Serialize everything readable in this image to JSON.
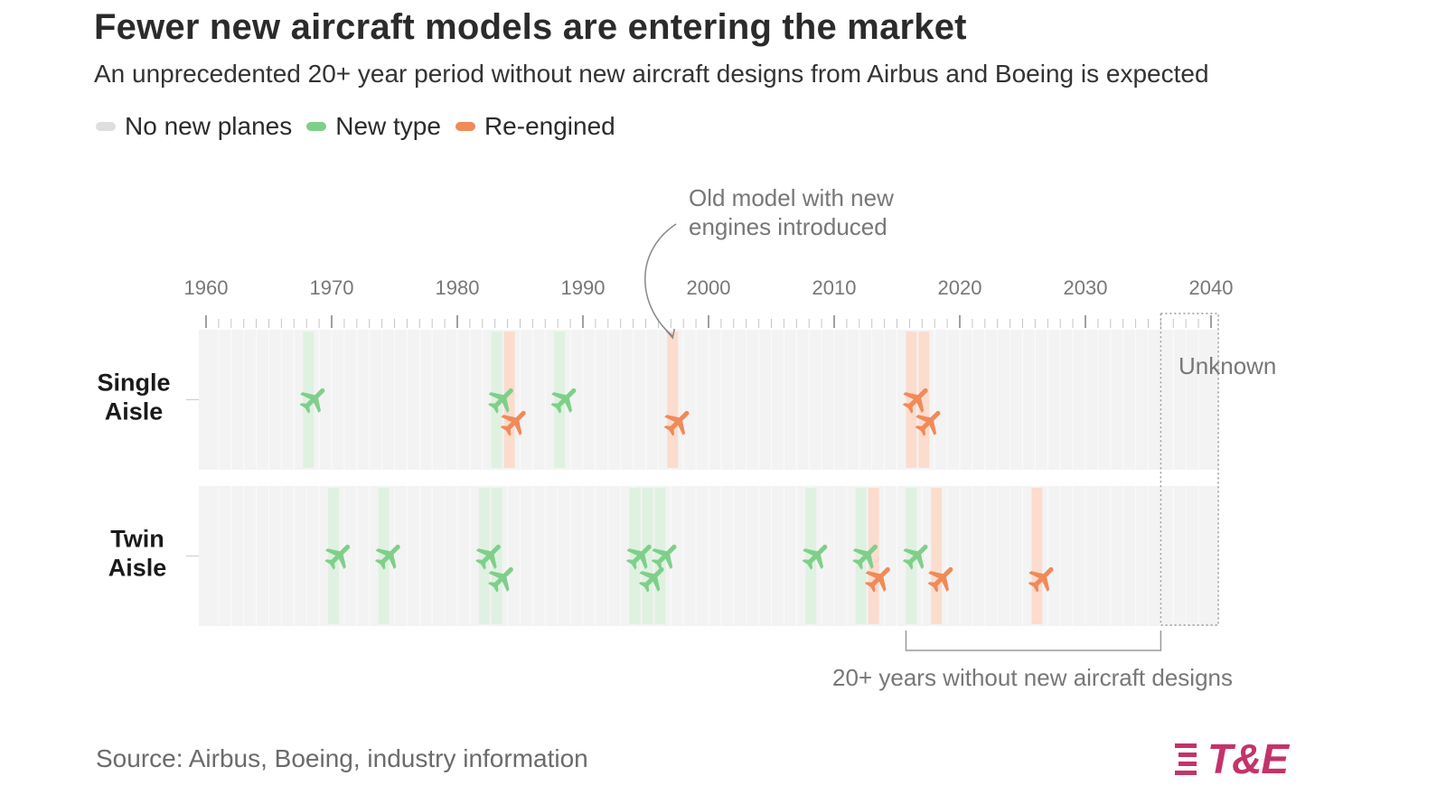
{
  "title": "Fewer new aircraft models are entering the market",
  "subtitle": "An unprecedented 20+ year period without new aircraft designs from Airbus and Boeing is expected",
  "legend": [
    {
      "label": "No new planes",
      "color": "#dedede"
    },
    {
      "label": "New type",
      "color": "#7fcf8a"
    },
    {
      "label": "Re-engined",
      "color": "#f08a59"
    }
  ],
  "colors": {
    "new_type_icon": "#7fcf8a",
    "new_type_band": "#dff1e0",
    "reengined_icon": "#f08a59",
    "reengined_band": "#fbdccd",
    "row_bg": "#f3f3f3",
    "annotation_text": "#777777"
  },
  "source": "Source: Airbus, Boeing, industry information",
  "logo": {
    "text": "T&E",
    "icon": "stripes-logo-icon"
  },
  "chart_data": {
    "type": "timeline",
    "x_domain": [
      1960,
      2040
    ],
    "known_until": 2036,
    "tick_labels": [
      1960,
      1970,
      1980,
      1990,
      2000,
      2010,
      2020,
      2030,
      2040
    ],
    "rows": [
      {
        "label_lines": [
          "Single",
          "Aisle"
        ],
        "events": [
          {
            "year": 1968,
            "type": "new",
            "level": 0
          },
          {
            "year": 1983,
            "type": "new",
            "level": 0
          },
          {
            "year": 1984,
            "type": "re",
            "level": 1
          },
          {
            "year": 1988,
            "type": "new",
            "level": 0
          },
          {
            "year": 1997,
            "type": "re",
            "level": 1
          },
          {
            "year": 2016,
            "type": "re",
            "level": 0
          },
          {
            "year": 2017,
            "type": "re",
            "level": 1
          }
        ]
      },
      {
        "label_lines": [
          "Twin",
          "Aisle"
        ],
        "events": [
          {
            "year": 1970,
            "type": "new",
            "level": 0
          },
          {
            "year": 1974,
            "type": "new",
            "level": 0
          },
          {
            "year": 1982,
            "type": "new",
            "level": 0
          },
          {
            "year": 1983,
            "type": "new",
            "level": 1
          },
          {
            "year": 1994,
            "type": "new",
            "level": 0
          },
          {
            "year": 1995,
            "type": "new",
            "level": 1
          },
          {
            "year": 1996,
            "type": "new",
            "level": 0
          },
          {
            "year": 2008,
            "type": "new",
            "level": 0
          },
          {
            "year": 2012,
            "type": "new",
            "level": 0
          },
          {
            "year": 2013,
            "type": "re",
            "level": 1
          },
          {
            "year": 2016,
            "type": "new",
            "level": 0
          },
          {
            "year": 2018,
            "type": "re",
            "level": 1
          },
          {
            "year": 2026,
            "type": "re",
            "level": 1
          }
        ]
      }
    ],
    "annotations": {
      "reengine_note": [
        "Old model with new",
        "engines introduced"
      ],
      "reengine_note_year": 1997,
      "unknown_label": "Unknown",
      "gap_label": "20+ years without new aircraft designs",
      "gap_range": [
        2016,
        2036
      ]
    }
  }
}
